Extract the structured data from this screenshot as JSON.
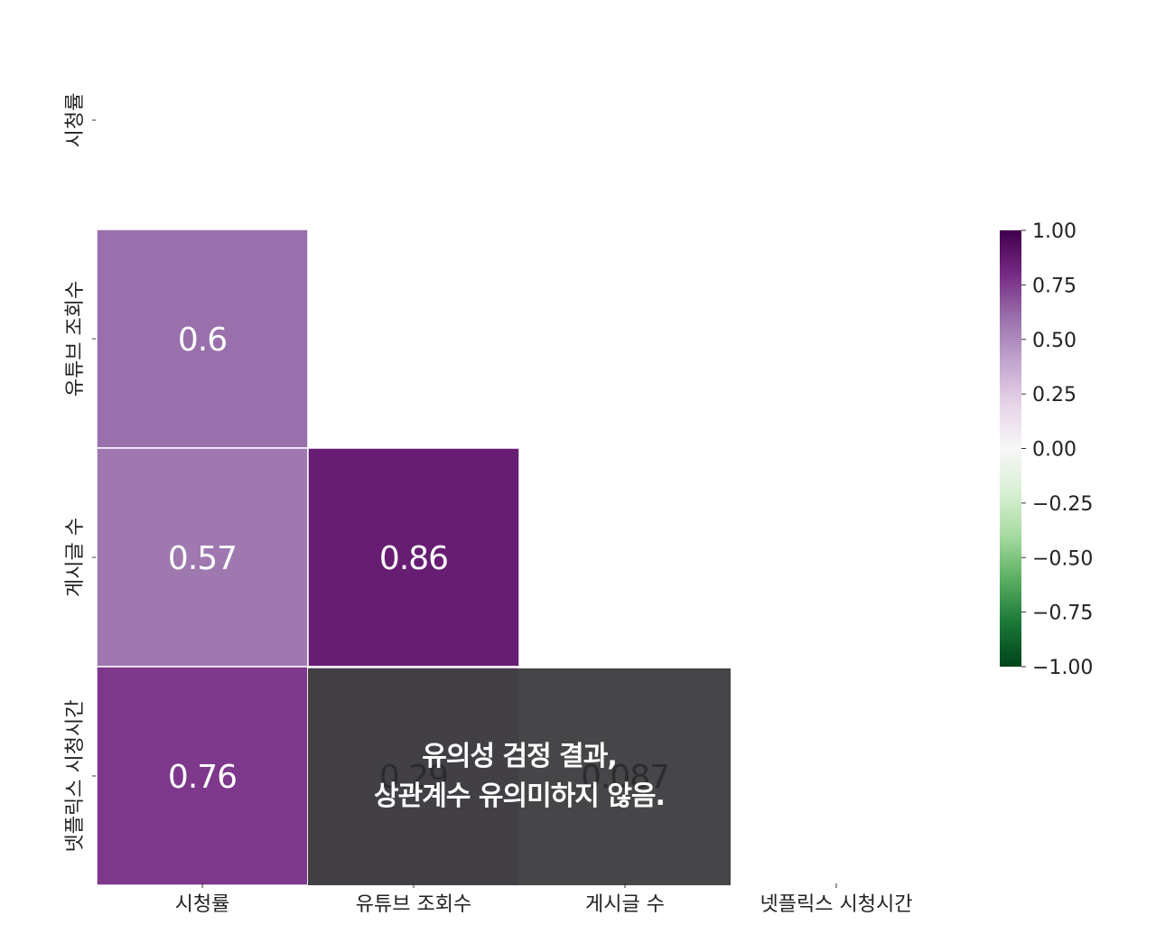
{
  "chart_data": {
    "type": "heatmap",
    "title": "",
    "variables": [
      "시청률",
      "유튜브 조회수",
      "게시글 수",
      "넷플릭스 시청시간"
    ],
    "mask": "upper-triangle-including-diagonal",
    "cells": [
      {
        "row": "유튜브 조회수",
        "col": "시청률",
        "value": 0.6,
        "label": "0.6"
      },
      {
        "row": "게시글 수",
        "col": "시청률",
        "value": 0.57,
        "label": "0.57"
      },
      {
        "row": "게시글 수",
        "col": "유튜브 조회수",
        "value": 0.86,
        "label": "0.86"
      },
      {
        "row": "넷플릭스 시청시간",
        "col": "시청률",
        "value": 0.76,
        "label": "0.76"
      },
      {
        "row": "넷플릭스 시청시간",
        "col": "유튜브 조회수",
        "value": 0.29,
        "label": "0.29"
      },
      {
        "row": "넷플릭스 시청시간",
        "col": "게시글 수",
        "value": 0.087,
        "label": "0.087"
      }
    ],
    "colorbar": {
      "colormap": "PRGn",
      "range": [
        -1.0,
        1.0
      ],
      "ticks": [
        "1.00",
        "0.75",
        "0.50",
        "0.25",
        "0.00",
        "−0.25",
        "−0.50",
        "−0.75",
        "−1.00"
      ],
      "tick_values": [
        1.0,
        0.75,
        0.5,
        0.25,
        0.0,
        -0.25,
        -0.5,
        -0.75,
        -1.0
      ],
      "colors": [
        "#00441b",
        "#1b7837",
        "#5aae61",
        "#a6dba0",
        "#d9f0d3",
        "#f7f7f7",
        "#e7d4e8",
        "#c2a5cf",
        "#9970ab",
        "#762a83",
        "#40004b"
      ]
    }
  },
  "overlay": {
    "line1": "유의성 검정 결과,",
    "line2": "상관계수 유의미하지 않음."
  }
}
